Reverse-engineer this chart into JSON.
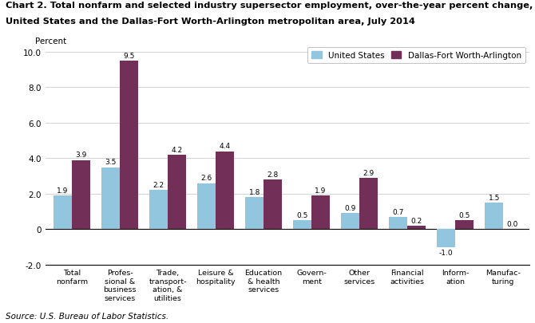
{
  "title_line1": "Chart 2. Total nonfarm and selected industry supersector employment, over-the-year percent change,",
  "title_line2": "United States and the Dallas-Fort Worth-Arlington metropolitan area, July 2014",
  "categories": [
    "Total\nnonfarm",
    "Profes-\nsional &\nbusiness\nservices",
    "Trade,\ntransport-\nation, &\nutilities",
    "Leisure &\nhospitality",
    "Education\n& health\nservices",
    "Govern-\nment",
    "Other\nservices",
    "Financial\nactivities",
    "Inform-\nation",
    "Manufac-\nturing"
  ],
  "us_values": [
    1.9,
    3.5,
    2.2,
    2.6,
    1.8,
    0.5,
    0.9,
    0.7,
    -1.0,
    1.5
  ],
  "dfw_values": [
    3.9,
    9.5,
    4.2,
    4.4,
    2.8,
    1.9,
    2.9,
    0.2,
    0.5,
    0.0
  ],
  "us_color": "#92C5DE",
  "dfw_color": "#722F57",
  "ylim": [
    -2.0,
    10.5
  ],
  "yticks": [
    -2.0,
    0.0,
    2.0,
    4.0,
    6.0,
    8.0,
    10.0
  ],
  "ytick_labels": [
    "-2.0",
    "0",
    "2.0",
    "4.0",
    "6.0",
    "8.0",
    "10.0"
  ],
  "ylabel": "Percent",
  "source": "Source: U.S. Bureau of Labor Statistics.",
  "legend_us": "United States",
  "legend_dfw": "Dallas-Fort Worth-Arlington",
  "bar_width": 0.38
}
